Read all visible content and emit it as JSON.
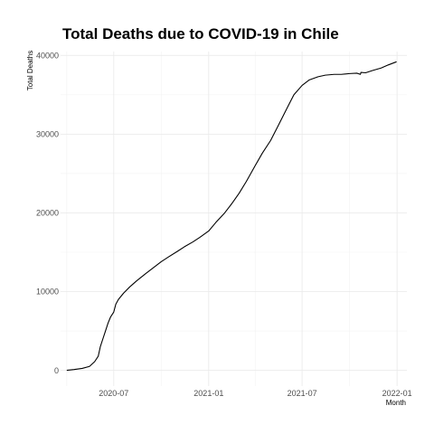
{
  "chart_data": {
    "type": "line",
    "title": "Total Deaths due to COVID-19 in Chile",
    "xlabel": "Month",
    "ylabel": "Total Deaths",
    "xlim": [
      "2020-03-20",
      "2022-01-20"
    ],
    "ylim": [
      -2000,
      40500
    ],
    "x_ticks": [
      "2020-07",
      "2021-01",
      "2021-07",
      "2022-01"
    ],
    "y_ticks": [
      0,
      10000,
      20000,
      30000,
      40000
    ],
    "y_tick_labels": [
      "0",
      "10000",
      "20000",
      "30000",
      "40000"
    ],
    "grid": true,
    "line_color": "#000000",
    "series": [
      {
        "x": [
          "2020-04-01",
          "2020-04-15",
          "2020-05-01",
          "2020-05-15",
          "2020-05-25",
          "2020-06-01",
          "2020-06-05",
          "2020-06-10",
          "2020-06-15",
          "2020-06-20",
          "2020-06-25",
          "2020-07-01",
          "2020-07-05",
          "2020-07-10",
          "2020-07-20",
          "2020-08-01",
          "2020-08-15",
          "2020-09-01",
          "2020-09-15",
          "2020-10-01",
          "2020-10-15",
          "2020-11-01",
          "2020-11-15",
          "2020-12-01",
          "2020-12-15",
          "2021-01-01",
          "2021-01-15",
          "2021-02-01",
          "2021-02-15",
          "2021-03-01",
          "2021-03-15",
          "2021-04-01",
          "2021-04-15",
          "2021-05-01",
          "2021-05-15",
          "2021-06-01",
          "2021-06-15",
          "2021-07-01",
          "2021-07-15",
          "2021-08-01",
          "2021-08-15",
          "2021-09-01",
          "2021-09-15",
          "2021-10-01",
          "2021-10-15",
          "2021-10-22",
          "2021-10-23",
          "2021-11-01",
          "2021-11-15",
          "2021-12-01",
          "2021-12-15",
          "2021-12-31"
        ],
        "y": [
          0,
          100,
          250,
          500,
          1100,
          1800,
          3000,
          4000,
          5000,
          6000,
          6800,
          7400,
          8400,
          9000,
          9800,
          10600,
          11400,
          12300,
          13000,
          13800,
          14400,
          15100,
          15700,
          16300,
          16900,
          17700,
          18800,
          20000,
          21200,
          22500,
          24000,
          26000,
          27600,
          29200,
          31000,
          33200,
          35000,
          36200,
          36900,
          37300,
          37500,
          37600,
          37600,
          37700,
          37750,
          37600,
          37850,
          37800,
          38100,
          38400,
          38800,
          39200
        ]
      }
    ]
  }
}
